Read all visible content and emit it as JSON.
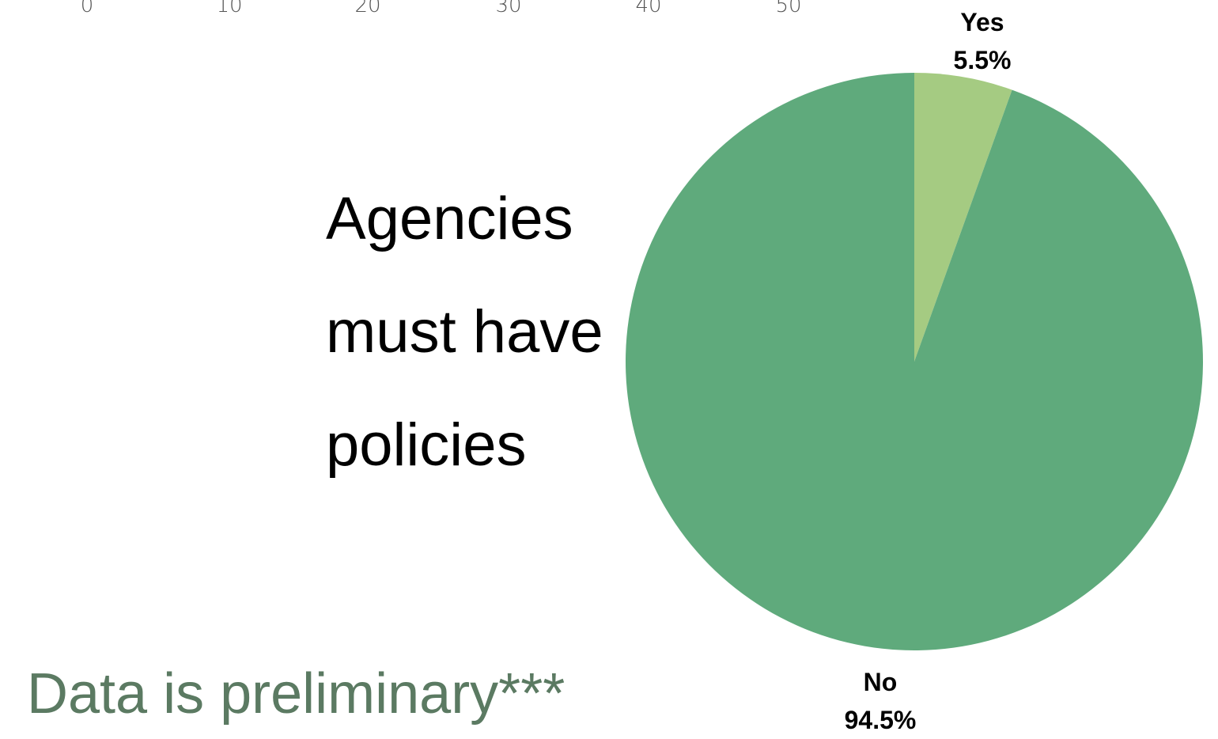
{
  "axis_ticks": [
    "0",
    "10",
    "20",
    "30",
    "40",
    "50"
  ],
  "headline": [
    "Agencies",
    "must have",
    "policies"
  ],
  "footnote": "Data is preliminary***",
  "chart_data": {
    "type": "pie",
    "title": "",
    "slices": [
      {
        "label": "Yes",
        "value": 5.5,
        "value_label": "5.5%",
        "color": "#a5cb82"
      },
      {
        "label": "No",
        "value": 94.5,
        "value_label": "94.5%",
        "color": "#5faa7c"
      }
    ]
  }
}
